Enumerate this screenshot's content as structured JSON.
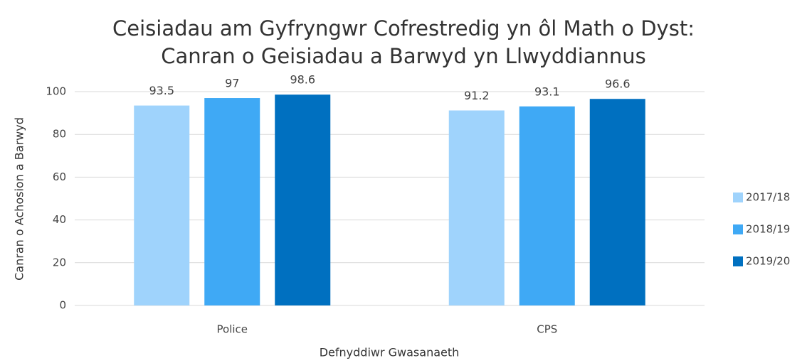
{
  "chart_data": {
    "type": "bar",
    "title": [
      "Ceisiadau am Gyfryngwr Cofrestredig yn ôl Math o Dyst:",
      "Canran o Geisiadau a Barwyd yn Llwyddiannus"
    ],
    "x_label": "Defnyddiwr Gwasanaeth",
    "y_label": "Canran o Achosion a Barwyd",
    "categories": [
      "Police",
      "CPS"
    ],
    "series": [
      {
        "name": "2017/18",
        "color": "#9fd3fc",
        "values": [
          93.5,
          91.2
        ]
      },
      {
        "name": "2018/19",
        "color": "#3fa9f5",
        "values": [
          97,
          93.1
        ]
      },
      {
        "name": "2019/20",
        "color": "#0070c0",
        "values": [
          98.6,
          96.6
        ]
      }
    ],
    "ylim": [
      0,
      100
    ],
    "yticks": [
      0,
      20,
      40,
      60,
      80,
      100
    ],
    "grid": true,
    "legend": "right"
  }
}
